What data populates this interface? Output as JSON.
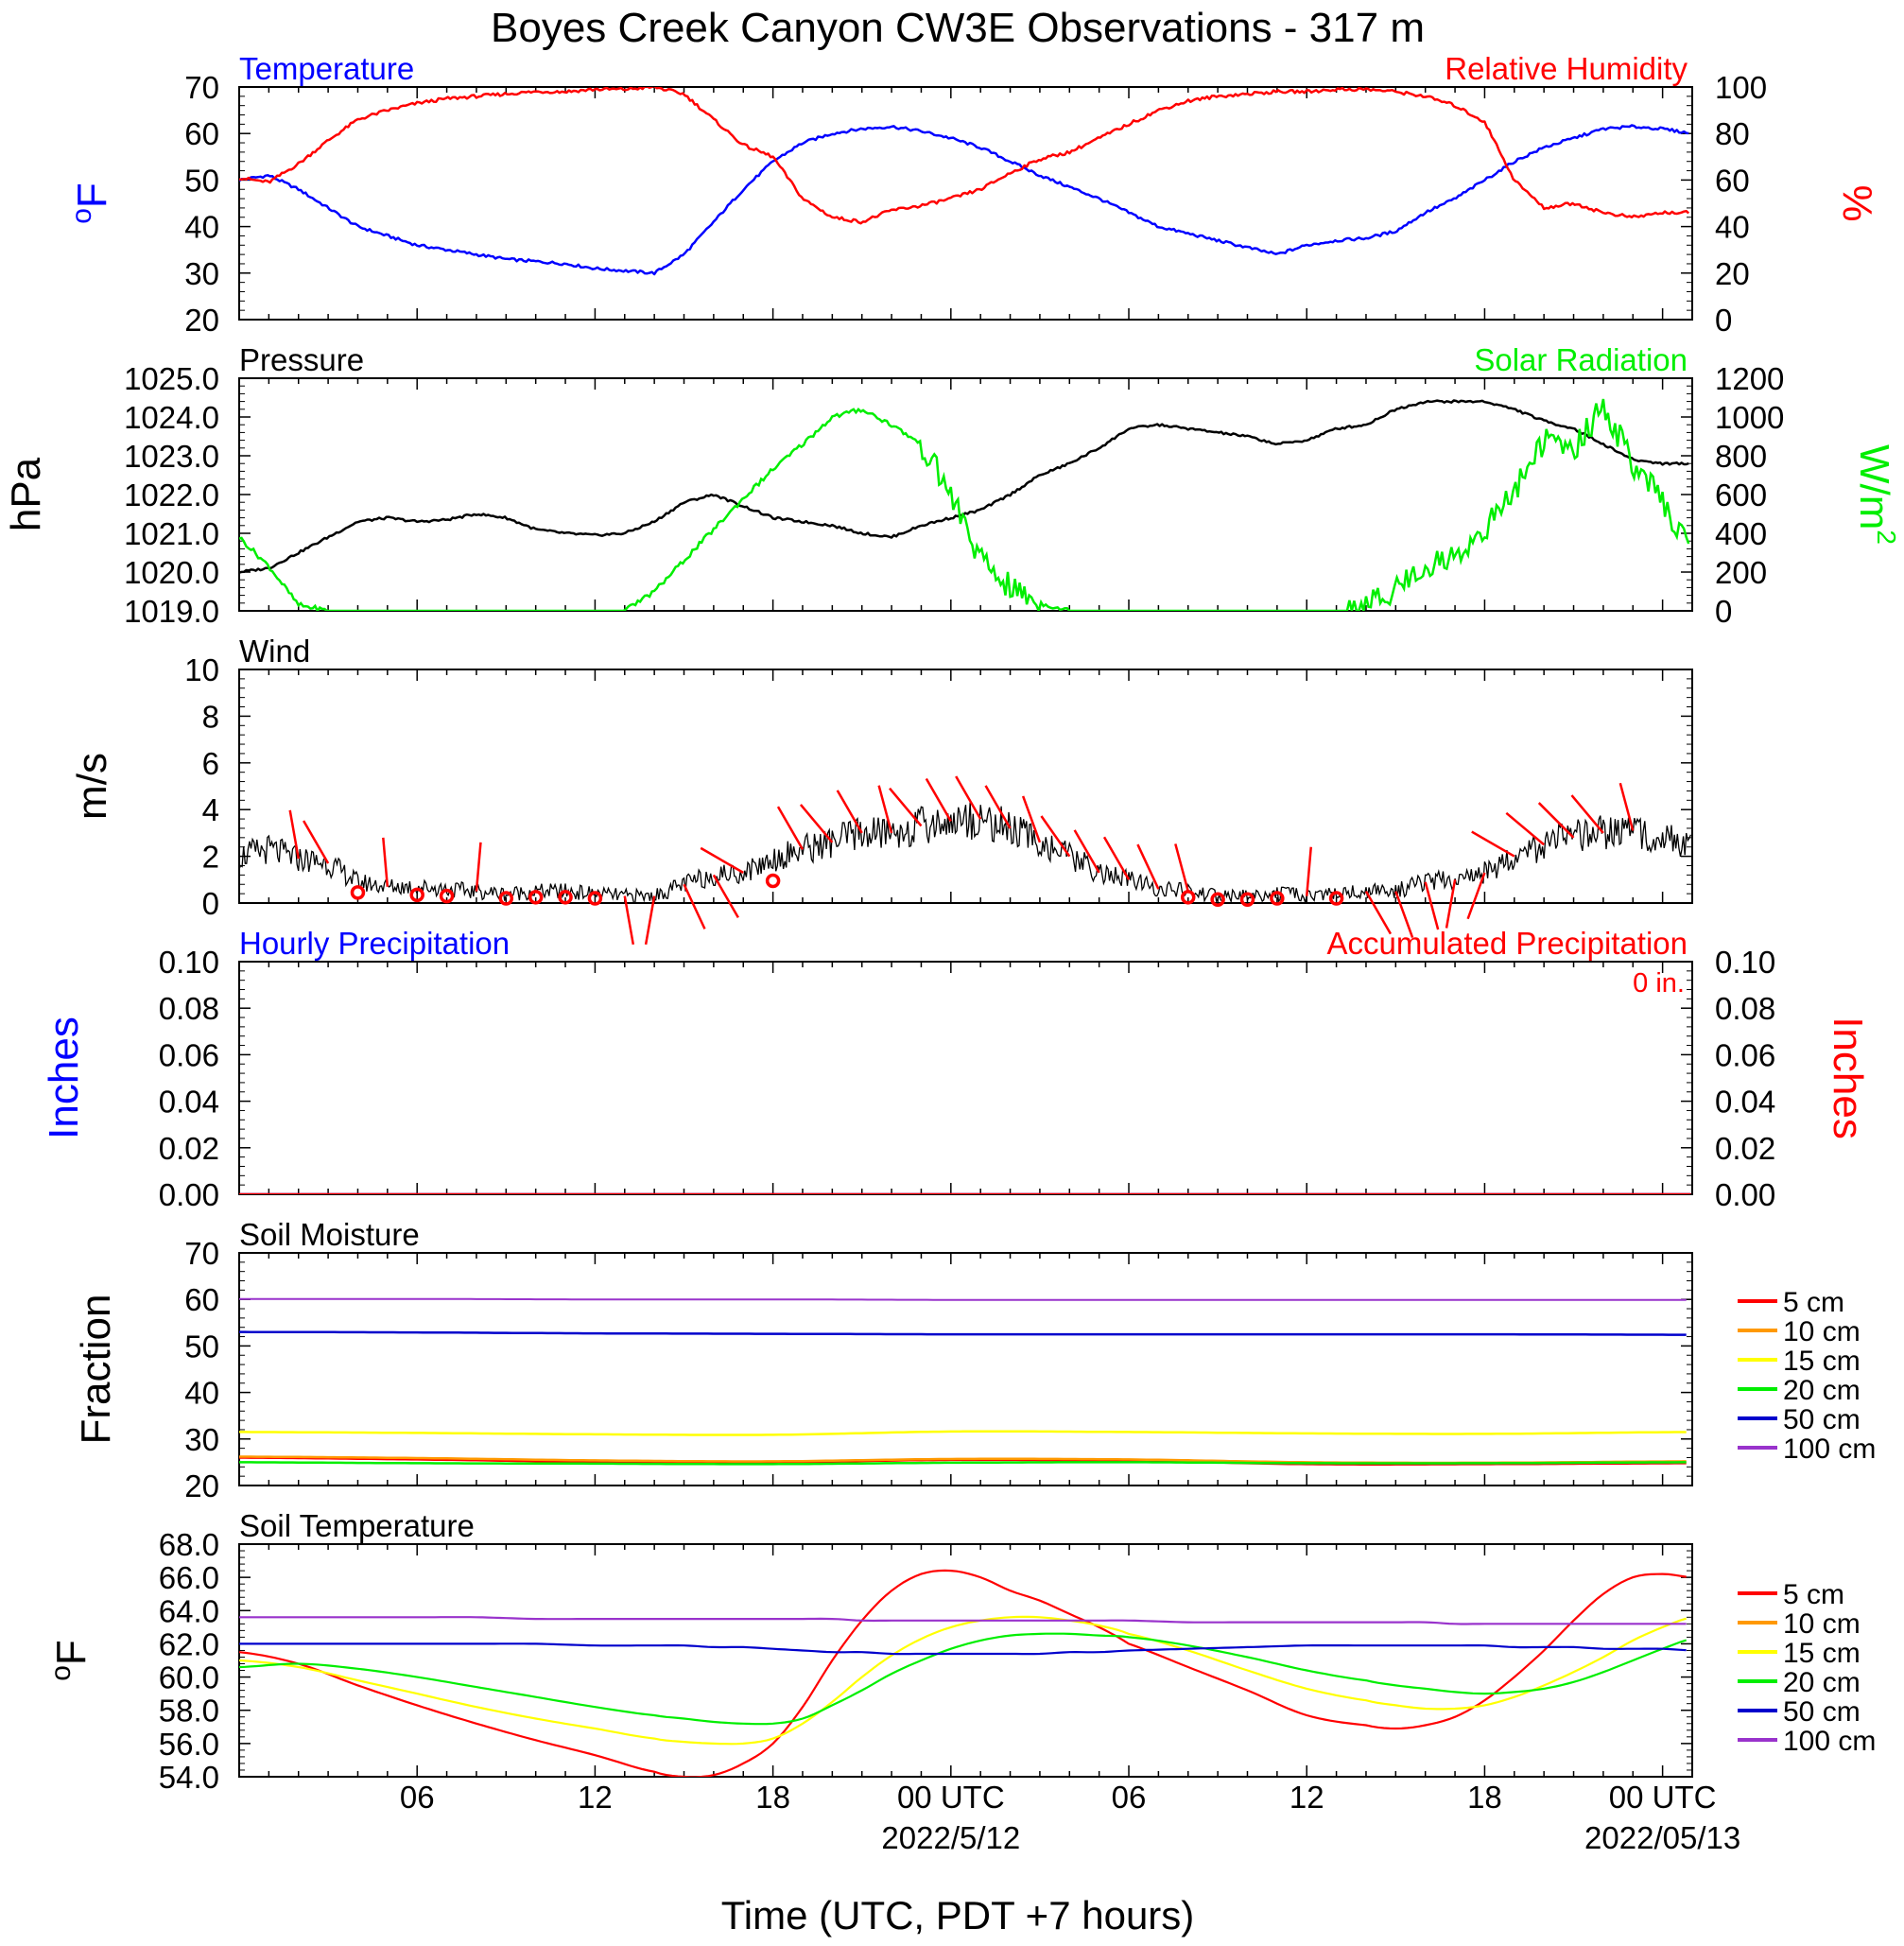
{
  "title": "Boyes Creek Canyon CW3E Observations - 317 m",
  "xlabel": "Time (UTC, PDT +7 hours)",
  "x_ticks": [
    {
      "hour": 6,
      "label": "06",
      "date": ""
    },
    {
      "hour": 12,
      "label": "12",
      "date": ""
    },
    {
      "hour": 18,
      "label": "18",
      "date": ""
    },
    {
      "hour": 24,
      "label": "00 UTC",
      "date": "2022/5/12"
    },
    {
      "hour": 30,
      "label": "06",
      "date": ""
    },
    {
      "hour": 36,
      "label": "12",
      "date": ""
    },
    {
      "hour": 42,
      "label": "18",
      "date": ""
    },
    {
      "hour": 48,
      "label": "00 UTC",
      "date": "2022/05/13"
    }
  ],
  "colors": {
    "temp": "#0000ff",
    "rh": "#ff0000",
    "solar": "#00ee00",
    "black": "#000000",
    "barb": "#ff0000"
  },
  "soil_colors": [
    "#ff0000",
    "#ff9900",
    "#ffff00",
    "#00ee00",
    "#0000cc",
    "#9933cc"
  ],
  "soil_legend": [
    "5 cm",
    "10 cm",
    "15 cm",
    "20 cm",
    "50 cm",
    "100 cm"
  ],
  "chart_data": [
    {
      "type": "line",
      "panel": "temperature_rh",
      "left_title": "Temperature",
      "right_title": "Relative Humidity",
      "ylabel": "oF",
      "y2label": "%",
      "ylim": [
        20,
        70
      ],
      "y2lim": [
        0,
        100
      ],
      "yticks": [
        "20",
        "30",
        "40",
        "50",
        "60",
        "70"
      ],
      "y2ticks": [
        "0",
        "20",
        "40",
        "60",
        "80",
        "100"
      ],
      "x": [
        0,
        1,
        2,
        3,
        4,
        5,
        6,
        7,
        8,
        9,
        10,
        11,
        12,
        13,
        14,
        15,
        16,
        17,
        18,
        19,
        20,
        21,
        22,
        23,
        24,
        25,
        26,
        27,
        28,
        29,
        30,
        31,
        32,
        33,
        34,
        35,
        36,
        37,
        38,
        39,
        40,
        41,
        42,
        43,
        44,
        45,
        46,
        47,
        48,
        49
      ],
      "series": [
        {
          "name": "Temperature",
          "axis": "left",
          "values": [
            50,
            51,
            48,
            44,
            40,
            38,
            36,
            35,
            34,
            33,
            32.5,
            32,
            31,
            30.5,
            30,
            34,
            41,
            48,
            54,
            58,
            60,
            61,
            61.5,
            60.5,
            59,
            57,
            54,
            51,
            48.5,
            46,
            43,
            40,
            38.5,
            37,
            35.5,
            34,
            36,
            37,
            37.5,
            39,
            43,
            46,
            50,
            54,
            57,
            59,
            61,
            61.5,
            61,
            60
          ]
        },
        {
          "name": "Relative Humidity",
          "axis": "right",
          "values": [
            61,
            59,
            67,
            77,
            86,
            90,
            93,
            95,
            96,
            97,
            98,
            98,
            99,
            99,
            100,
            97,
            86,
            75,
            70,
            52,
            44,
            42,
            47,
            49,
            52,
            56,
            63,
            69,
            72,
            78,
            84,
            90,
            94,
            96,
            97,
            98,
            98,
            99,
            99,
            98,
            96,
            92,
            85,
            60,
            48,
            50,
            46,
            44,
            46,
            46
          ]
        }
      ]
    },
    {
      "type": "line",
      "panel": "pressure_solar",
      "left_title": "Pressure",
      "right_title": "Solar Radiation",
      "ylabel": "hPa",
      "y2label": "W/m2",
      "ylim": [
        1019,
        1025
      ],
      "y2lim": [
        0,
        1200
      ],
      "yticks": [
        "1019.0",
        "1020.0",
        "1021.0",
        "1022.0",
        "1023.0",
        "1024.0",
        "1025.0"
      ],
      "y2ticks": [
        "0",
        "200",
        "400",
        "600",
        "800",
        "1000",
        "1200"
      ],
      "x": [
        0,
        1,
        2,
        3,
        4,
        5,
        6,
        7,
        8,
        9,
        10,
        11,
        12,
        13,
        14,
        15,
        16,
        17,
        18,
        19,
        20,
        21,
        22,
        23,
        24,
        25,
        26,
        27,
        28,
        29,
        30,
        31,
        32,
        33,
        34,
        35,
        36,
        37,
        38,
        39,
        40,
        41,
        42,
        43,
        44,
        45,
        46,
        47,
        48,
        49
      ],
      "series": [
        {
          "name": "Pressure",
          "axis": "left",
          "values": [
            1020.0,
            1020.1,
            1020.5,
            1020.9,
            1021.3,
            1021.4,
            1021.3,
            1021.35,
            1021.5,
            1021.4,
            1021.1,
            1021.0,
            1020.95,
            1021.0,
            1021.3,
            1021.8,
            1022.0,
            1021.7,
            1021.4,
            1021.3,
            1021.2,
            1021.0,
            1020.9,
            1021.2,
            1021.4,
            1021.6,
            1022.0,
            1022.5,
            1022.8,
            1023.2,
            1023.7,
            1023.8,
            1023.7,
            1023.6,
            1023.5,
            1023.3,
            1023.4,
            1023.7,
            1023.8,
            1024.2,
            1024.4,
            1024.4,
            1024.4,
            1024.2,
            1023.9,
            1023.7,
            1023.3,
            1022.9,
            1022.8,
            1022.8
          ]
        },
        {
          "name": "Solar Radiation",
          "axis": "right",
          "values": [
            380,
            230,
            30,
            0,
            0,
            0,
            0,
            0,
            0,
            0,
            0,
            0,
            0,
            0,
            100,
            260,
            420,
            580,
            730,
            860,
            1000,
            1040,
            960,
            860,
            600,
            260,
            120,
            40,
            0,
            0,
            0,
            0,
            0,
            0,
            0,
            0,
            0,
            0,
            20,
            120,
            230,
            280,
            420,
            620,
            880,
            830,
            1060,
            760,
            560,
            300
          ]
        }
      ]
    },
    {
      "type": "line",
      "panel": "wind",
      "left_title": "Wind",
      "ylabel": "m/s",
      "ylim": [
        0,
        10
      ],
      "yticks": [
        "0",
        "2",
        "4",
        "6",
        "8",
        "10"
      ],
      "x": [
        0,
        1,
        2,
        3,
        4,
        5,
        6,
        7,
        8,
        9,
        10,
        11,
        12,
        13,
        14,
        15,
        16,
        17,
        18,
        19,
        20,
        21,
        22,
        23,
        24,
        25,
        26,
        27,
        28,
        29,
        30,
        31,
        32,
        33,
        34,
        35,
        36,
        37,
        38,
        39,
        40,
        41,
        42,
        43,
        44,
        45,
        46,
        47,
        48,
        49
      ],
      "series": [
        {
          "name": "Wind Speed",
          "axis": "left",
          "values": [
            2.0,
            2.3,
            1.9,
            1.7,
            0.9,
            0.7,
            0.7,
            0.6,
            0.5,
            0.4,
            0.5,
            0.5,
            0.4,
            0.3,
            0.3,
            0.8,
            1.2,
            1.3,
            1.9,
            2.3,
            2.6,
            3.0,
            3.0,
            3.3,
            3.5,
            3.6,
            3.2,
            2.6,
            2.0,
            1.3,
            1.0,
            0.6,
            0.5,
            0.3,
            0.3,
            0.4,
            0.3,
            0.4,
            0.5,
            0.5,
            0.9,
            1.0,
            1.3,
            2.0,
            2.5,
            2.8,
            3.0,
            3.1,
            2.8,
            2.6
          ]
        }
      ],
      "barbs": [
        {
          "hour": 2,
          "dir": 350
        },
        {
          "hour": 3,
          "dir": 330
        },
        {
          "hour": 5,
          "dir": 355
        },
        {
          "hour": 8,
          "dir": 5
        },
        {
          "hour": 13,
          "dir": 170
        },
        {
          "hour": 14,
          "dir": 190
        },
        {
          "hour": 15,
          "dir": 155
        },
        {
          "hour": 16,
          "dir": 150
        },
        {
          "hour": 17,
          "dir": 300
        },
        {
          "hour": 19,
          "dir": 330
        },
        {
          "hour": 20,
          "dir": 320
        },
        {
          "hour": 21,
          "dir": 330
        },
        {
          "hour": 22,
          "dir": 345
        },
        {
          "hour": 23,
          "dir": 320
        },
        {
          "hour": 24,
          "dir": 330
        },
        {
          "hour": 25,
          "dir": 330
        },
        {
          "hour": 26,
          "dir": 330
        },
        {
          "hour": 27,
          "dir": 340
        },
        {
          "hour": 28,
          "dir": 325
        },
        {
          "hour": 29,
          "dir": 330
        },
        {
          "hour": 30,
          "dir": 330
        },
        {
          "hour": 31,
          "dir": 335
        },
        {
          "hour": 32,
          "dir": 345
        },
        {
          "hour": 36,
          "dir": 5
        },
        {
          "hour": 38,
          "dir": 150
        },
        {
          "hour": 39,
          "dir": 160
        },
        {
          "hour": 40,
          "dir": 165
        },
        {
          "hour": 41,
          "dir": 190
        },
        {
          "hour": 42,
          "dir": 200
        },
        {
          "hour": 43,
          "dir": 300
        },
        {
          "hour": 44,
          "dir": 310
        },
        {
          "hour": 45,
          "dir": 315
        },
        {
          "hour": 46,
          "dir": 320
        },
        {
          "hour": 47,
          "dir": 345
        }
      ],
      "calm_hours": [
        4,
        6,
        7,
        9,
        10,
        11,
        12,
        18,
        32,
        33,
        34,
        35,
        37
      ]
    },
    {
      "type": "line",
      "panel": "precipitation",
      "left_title": "Hourly Precipitation",
      "right_title": "Accumulated Precipitation",
      "annotation": "0 in.",
      "ylabel": "Inches",
      "y2label": "Inches",
      "ylim": [
        0,
        0.1
      ],
      "y2lim": [
        0,
        0.1
      ],
      "yticks": [
        "0.00",
        "0.02",
        "0.04",
        "0.06",
        "0.08",
        "0.10"
      ],
      "y2ticks": [
        "0.00",
        "0.02",
        "0.04",
        "0.06",
        "0.08",
        "0.10"
      ],
      "x": [
        0,
        49
      ],
      "series": [
        {
          "name": "Hourly Precipitation",
          "axis": "left",
          "values": [
            0,
            0
          ]
        },
        {
          "name": "Accumulated Precipitation",
          "axis": "right",
          "values": [
            0,
            0
          ]
        }
      ]
    },
    {
      "type": "line",
      "panel": "soil_moisture",
      "left_title": "Soil Moisture",
      "ylabel": "Fraction",
      "ylim": [
        20,
        70
      ],
      "yticks": [
        "20",
        "30",
        "40",
        "50",
        "60",
        "70"
      ],
      "x": [
        0,
        6,
        12,
        18,
        24,
        30,
        36,
        42,
        49
      ],
      "series": [
        {
          "name": "5 cm",
          "values": [
            26.0,
            25.6,
            25.1,
            25.0,
            25.5,
            25.3,
            24.6,
            24.6,
            24.8
          ]
        },
        {
          "name": "10 cm",
          "values": [
            26.2,
            25.9,
            25.4,
            25.2,
            25.7,
            25.6,
            25.0,
            24.9,
            25.2
          ]
        },
        {
          "name": "15 cm",
          "values": [
            31.5,
            31.3,
            31.0,
            30.9,
            31.6,
            31.5,
            31.2,
            31.1,
            31.5
          ]
        },
        {
          "name": "20 cm",
          "values": [
            25.0,
            24.8,
            24.7,
            24.6,
            24.9,
            25.0,
            24.8,
            24.8,
            25.0
          ]
        },
        {
          "name": "50 cm",
          "values": [
            53.0,
            52.9,
            52.7,
            52.6,
            52.5,
            52.5,
            52.5,
            52.5,
            52.4
          ]
        },
        {
          "name": "100 cm",
          "values": [
            60.1,
            60.1,
            60.0,
            60.0,
            59.9,
            59.9,
            59.9,
            59.9,
            59.9
          ]
        }
      ]
    },
    {
      "type": "line",
      "panel": "soil_temperature",
      "left_title": "Soil Temperature",
      "ylabel": "oF",
      "ylim": [
        54,
        68
      ],
      "yticks": [
        "54.0",
        "56.0",
        "58.0",
        "60.0",
        "62.0",
        "64.0",
        "66.0",
        "68.0"
      ],
      "x": [
        0,
        2,
        4,
        6,
        8,
        10,
        12,
        14,
        15,
        16,
        17,
        18,
        19,
        20,
        21,
        22,
        23,
        24,
        25,
        26,
        27,
        28,
        29,
        30,
        32,
        34,
        36,
        38,
        39,
        40,
        41,
        42,
        43,
        44,
        45,
        46,
        47,
        48,
        49
      ],
      "series": [
        {
          "name": "5 cm",
          "values": [
            61.5,
            60.8,
            59.5,
            58.3,
            57.2,
            56.2,
            55.3,
            54.3,
            54.0,
            54.1,
            54.8,
            56.0,
            58.2,
            61.0,
            63.4,
            65.2,
            66.2,
            66.4,
            66.0,
            65.2,
            64.6,
            63.8,
            63.0,
            62.0,
            60.6,
            59.2,
            57.7,
            57.1,
            56.9,
            57.1,
            57.6,
            58.6,
            60.0,
            61.6,
            63.4,
            65.0,
            66.0,
            66.2,
            66.0
          ]
        },
        {
          "name": "15 cm",
          "values": [
            61.0,
            60.6,
            59.8,
            59.0,
            58.2,
            57.5,
            56.9,
            56.3,
            56.1,
            56.0,
            56.0,
            56.3,
            57.2,
            58.5,
            60.0,
            61.3,
            62.3,
            63.0,
            63.4,
            63.6,
            63.6,
            63.4,
            63.1,
            62.6,
            61.6,
            60.4,
            59.3,
            58.6,
            58.3,
            58.1,
            58.1,
            58.3,
            58.8,
            59.5,
            60.3,
            61.2,
            62.2,
            63.0,
            63.6
          ]
        },
        {
          "name": "20 cm",
          "values": [
            60.6,
            60.8,
            60.5,
            60.0,
            59.4,
            58.8,
            58.2,
            57.7,
            57.5,
            57.3,
            57.2,
            57.2,
            57.5,
            58.3,
            59.2,
            60.2,
            61.0,
            61.7,
            62.2,
            62.5,
            62.6,
            62.6,
            62.5,
            62.4,
            61.9,
            61.2,
            60.4,
            59.8,
            59.5,
            59.3,
            59.1,
            59.0,
            59.1,
            59.3,
            59.7,
            60.3,
            61.0,
            61.7,
            62.3
          ]
        },
        {
          "name": "50 cm",
          "values": [
            62.0,
            62.0,
            62.0,
            62.0,
            62.0,
            62.0,
            61.9,
            61.9,
            61.9,
            61.8,
            61.8,
            61.7,
            61.6,
            61.5,
            61.5,
            61.4,
            61.4,
            61.4,
            61.4,
            61.4,
            61.4,
            61.5,
            61.5,
            61.6,
            61.7,
            61.8,
            61.9,
            61.9,
            61.9,
            61.9,
            61.9,
            61.9,
            61.8,
            61.8,
            61.8,
            61.7,
            61.7,
            61.7,
            61.6
          ]
        },
        {
          "name": "100 cm",
          "values": [
            63.6,
            63.6,
            63.6,
            63.6,
            63.6,
            63.5,
            63.5,
            63.5,
            63.5,
            63.5,
            63.5,
            63.5,
            63.5,
            63.5,
            63.4,
            63.4,
            63.4,
            63.4,
            63.4,
            63.4,
            63.4,
            63.4,
            63.4,
            63.4,
            63.3,
            63.3,
            63.3,
            63.3,
            63.3,
            63.3,
            63.2,
            63.2,
            63.2,
            63.2,
            63.2,
            63.2,
            63.2,
            63.2,
            63.2
          ]
        }
      ]
    }
  ]
}
